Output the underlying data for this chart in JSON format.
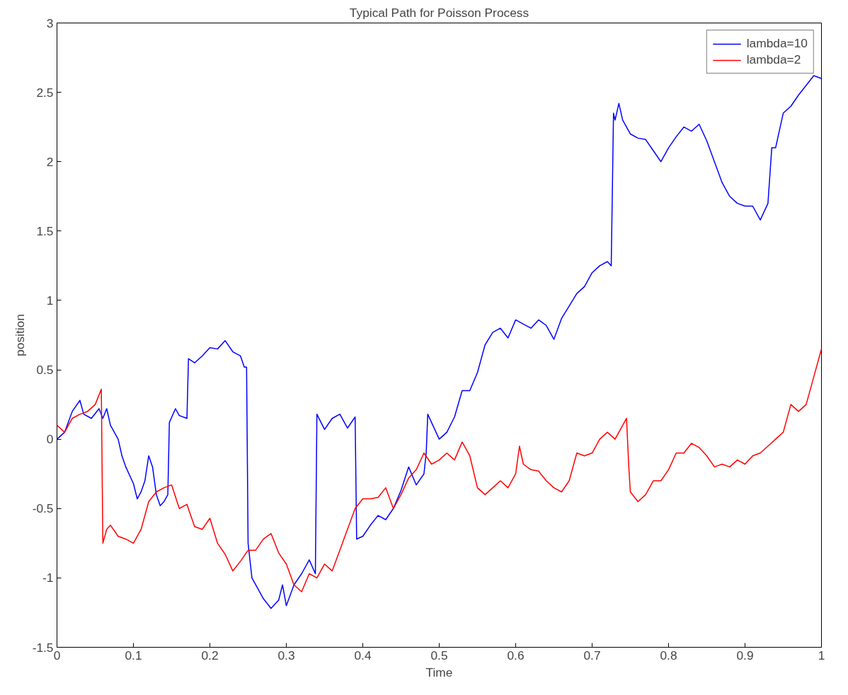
{
  "chart_data": {
    "type": "line",
    "title": "Typical Path for Poisson Process",
    "xlabel": "Time",
    "ylabel": "position",
    "xlim": [
      0,
      1
    ],
    "ylim": [
      -1.5,
      3
    ],
    "xticks": [
      0,
      0.1,
      0.2,
      0.3,
      0.4,
      0.5,
      0.6,
      0.7,
      0.8,
      0.9,
      1
    ],
    "yticks": [
      -1.5,
      -1,
      -0.5,
      0,
      0.5,
      1,
      1.5,
      2,
      2.5,
      3
    ],
    "grid": false,
    "legend": "top right",
    "line_style": "solid",
    "marker": "none",
    "series": [
      {
        "name": "lambda=10",
        "color": "#0000ff",
        "x": [
          0,
          0.01,
          0.02,
          0.03,
          0.035,
          0.045,
          0.055,
          0.06,
          0.065,
          0.07,
          0.08,
          0.085,
          0.09,
          0.1,
          0.105,
          0.11,
          0.115,
          0.12,
          0.125,
          0.13,
          0.135,
          0.14,
          0.145,
          0.147,
          0.155,
          0.16,
          0.17,
          0.172,
          0.18,
          0.19,
          0.2,
          0.21,
          0.22,
          0.23,
          0.24,
          0.245,
          0.248,
          0.25,
          0.255,
          0.26,
          0.27,
          0.28,
          0.29,
          0.295,
          0.3,
          0.31,
          0.32,
          0.33,
          0.338,
          0.34,
          0.35,
          0.36,
          0.37,
          0.38,
          0.39,
          0.392,
          0.4,
          0.41,
          0.42,
          0.43,
          0.44,
          0.45,
          0.46,
          0.47,
          0.48,
          0.483,
          0.485,
          0.49,
          0.5,
          0.51,
          0.52,
          0.53,
          0.54,
          0.55,
          0.56,
          0.57,
          0.58,
          0.59,
          0.6,
          0.61,
          0.62,
          0.63,
          0.64,
          0.65,
          0.66,
          0.67,
          0.68,
          0.69,
          0.7,
          0.71,
          0.72,
          0.725,
          0.728,
          0.73,
          0.735,
          0.74,
          0.75,
          0.76,
          0.77,
          0.78,
          0.79,
          0.8,
          0.81,
          0.82,
          0.83,
          0.84,
          0.85,
          0.86,
          0.87,
          0.88,
          0.89,
          0.9,
          0.91,
          0.92,
          0.93,
          0.935,
          0.94,
          0.95,
          0.96,
          0.97,
          0.98,
          0.99,
          1
        ],
        "values": [
          0,
          0.05,
          0.2,
          0.28,
          0.18,
          0.15,
          0.22,
          0.15,
          0.22,
          0.1,
          0,
          -0.12,
          -0.2,
          -0.32,
          -0.43,
          -0.38,
          -0.3,
          -0.12,
          -0.2,
          -0.4,
          -0.48,
          -0.45,
          -0.4,
          0.12,
          0.22,
          0.17,
          0.15,
          0.58,
          0.55,
          0.6,
          0.66,
          0.65,
          0.71,
          0.63,
          0.6,
          0.52,
          0.52,
          -0.75,
          -1,
          -1.05,
          -1.15,
          -1.22,
          -1.16,
          -1.05,
          -1.2,
          -1.05,
          -0.97,
          -0.87,
          -0.97,
          0.18,
          0.07,
          0.15,
          0.18,
          0.08,
          0.16,
          -0.72,
          -0.7,
          -0.62,
          -0.55,
          -0.58,
          -0.5,
          -0.37,
          -0.2,
          -0.33,
          -0.25,
          -0.1,
          0.18,
          0.12,
          0,
          0.05,
          0.16,
          0.35,
          0.35,
          0.48,
          0.68,
          0.77,
          0.8,
          0.73,
          0.86,
          0.83,
          0.8,
          0.86,
          0.82,
          0.72,
          0.87,
          0.96,
          1.05,
          1.1,
          1.2,
          1.25,
          1.28,
          1.25,
          2.35,
          2.3,
          2.42,
          2.3,
          2.2,
          2.17,
          2.16,
          2.08,
          2,
          2.1,
          2.18,
          2.25,
          2.22,
          2.27,
          2.15,
          2,
          1.85,
          1.75,
          1.7,
          1.68,
          1.68,
          1.58,
          1.7,
          2.1,
          2.1,
          2.35,
          2.4,
          2.48,
          2.55,
          2.62,
          2.6
        ]
      },
      {
        "name": "lambda=2",
        "color": "#ff0000",
        "x": [
          0,
          0.01,
          0.02,
          0.03,
          0.04,
          0.05,
          0.058,
          0.06,
          0.065,
          0.07,
          0.08,
          0.09,
          0.1,
          0.11,
          0.12,
          0.13,
          0.14,
          0.15,
          0.16,
          0.17,
          0.18,
          0.19,
          0.2,
          0.21,
          0.22,
          0.23,
          0.24,
          0.25,
          0.26,
          0.27,
          0.28,
          0.29,
          0.3,
          0.31,
          0.32,
          0.33,
          0.34,
          0.35,
          0.36,
          0.37,
          0.38,
          0.39,
          0.4,
          0.41,
          0.42,
          0.43,
          0.44,
          0.45,
          0.46,
          0.47,
          0.48,
          0.49,
          0.5,
          0.51,
          0.52,
          0.53,
          0.54,
          0.55,
          0.56,
          0.57,
          0.58,
          0.59,
          0.6,
          0.605,
          0.61,
          0.62,
          0.63,
          0.64,
          0.65,
          0.66,
          0.67,
          0.68,
          0.69,
          0.7,
          0.71,
          0.72,
          0.73,
          0.74,
          0.745,
          0.748,
          0.75,
          0.76,
          0.77,
          0.78,
          0.79,
          0.8,
          0.81,
          0.82,
          0.83,
          0.84,
          0.85,
          0.86,
          0.87,
          0.88,
          0.89,
          0.9,
          0.91,
          0.92,
          0.93,
          0.94,
          0.95,
          0.96,
          0.97,
          0.98,
          0.99,
          1
        ],
        "values": [
          0.1,
          0.05,
          0.15,
          0.18,
          0.2,
          0.25,
          0.36,
          -0.75,
          -0.65,
          -0.62,
          -0.7,
          -0.72,
          -0.75,
          -0.65,
          -0.45,
          -0.38,
          -0.35,
          -0.33,
          -0.5,
          -0.47,
          -0.63,
          -0.65,
          -0.57,
          -0.75,
          -0.83,
          -0.95,
          -0.88,
          -0.8,
          -0.8,
          -0.72,
          -0.68,
          -0.82,
          -0.9,
          -1.05,
          -1.1,
          -0.97,
          -1,
          -0.9,
          -0.95,
          -0.8,
          -0.65,
          -0.5,
          -0.43,
          -0.43,
          -0.42,
          -0.35,
          -0.5,
          -0.4,
          -0.28,
          -0.22,
          -0.1,
          -0.18,
          -0.15,
          -0.1,
          -0.15,
          -0.02,
          -0.12,
          -0.35,
          -0.4,
          -0.35,
          -0.3,
          -0.35,
          -0.25,
          -0.05,
          -0.18,
          -0.22,
          -0.23,
          -0.3,
          -0.35,
          -0.38,
          -0.3,
          -0.1,
          -0.12,
          -0.1,
          0,
          0.05,
          0,
          0.1,
          0.15,
          -0.2,
          -0.38,
          -0.45,
          -0.4,
          -0.3,
          -0.3,
          -0.22,
          -0.1,
          -0.1,
          -0.03,
          -0.06,
          -0.12,
          -0.2,
          -0.18,
          -0.2,
          -0.15,
          -0.18,
          -0.12,
          -0.1,
          -0.05,
          0,
          0.05,
          0.25,
          0.2,
          0.25,
          0.45,
          0.65
        ]
      }
    ]
  }
}
